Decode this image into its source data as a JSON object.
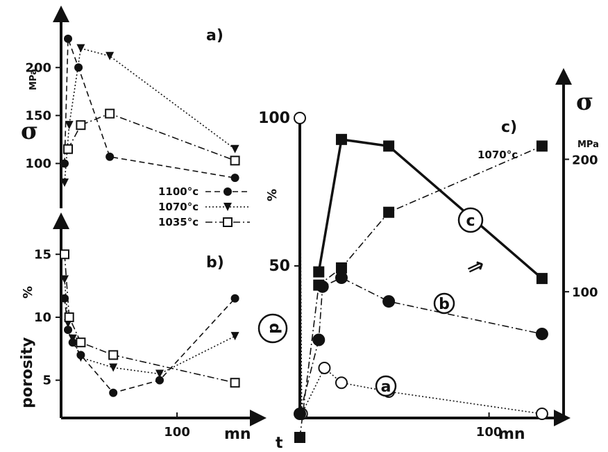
{
  "chart_data": [
    {
      "id": "a",
      "type": "line",
      "panel_label": "a)",
      "ylabel": "σ",
      "yunit": "MPa",
      "yticks": [
        100,
        150,
        200
      ],
      "ylim": [
        75,
        240
      ],
      "xlim": [
        0,
        170
      ],
      "series": [
        {
          "name": "1100°c",
          "marker": "circle-filled",
          "dash": "dashed",
          "x": [
            3,
            6,
            15,
            42,
            150
          ],
          "y": [
            100,
            230,
            200,
            107,
            85
          ]
        },
        {
          "name": "1070°c",
          "marker": "triangle-filled",
          "dash": "dotted",
          "x": [
            3,
            7,
            17,
            42,
            150
          ],
          "y": [
            80,
            140,
            220,
            212,
            115
          ]
        },
        {
          "name": "1035°c",
          "marker": "square-open",
          "dash": "dashdot",
          "x": [
            6,
            17,
            42,
            150
          ],
          "y": [
            115,
            140,
            152,
            103
          ]
        }
      ],
      "legend_position": "lower-right"
    },
    {
      "id": "b",
      "type": "line",
      "panel_label": "b)",
      "ylabel": "porosity",
      "yunit": "%",
      "xunit": "mn",
      "yticks": [
        5,
        10,
        15
      ],
      "xticks": [
        100
      ],
      "ylim": [
        2,
        17
      ],
      "xlim": [
        0,
        170
      ],
      "series": [
        {
          "name": "1100°c",
          "marker": "circle-filled",
          "dash": "dashed",
          "x": [
            3,
            6,
            10,
            17,
            45,
            85,
            150
          ],
          "y": [
            11.5,
            9,
            8,
            7,
            4,
            5,
            11.5
          ]
        },
        {
          "name": "1070°c",
          "marker": "triangle-filled",
          "dash": "dotted",
          "x": [
            3,
            6,
            10,
            17,
            45,
            85,
            150
          ],
          "y": [
            13,
            9.5,
            8.3,
            6.8,
            6,
            5.5,
            8.5
          ]
        },
        {
          "name": "1035°c",
          "marker": "square-open",
          "dash": "dashdot",
          "x": [
            3,
            7,
            17,
            45,
            150
          ],
          "y": [
            15,
            10,
            8,
            7,
            4.8
          ]
        }
      ]
    },
    {
      "id": "c",
      "type": "line",
      "panel_label": "c)",
      "subtitle": "1070°c",
      "ylabel_left": "%",
      "ylabel_right": "σ",
      "yunit_right": "MPa",
      "xlabel": "t",
      "xunit": "mn",
      "yticks_left": [
        50,
        100
      ],
      "yticks_right": [
        100,
        200
      ],
      "xticks": [
        100
      ],
      "ylim_left": [
        0,
        100
      ],
      "ylim_right": [
        -10,
        260
      ],
      "xlim": [
        0,
        135
      ],
      "series": [
        {
          "name": "a",
          "axis": "left",
          "marker": "circle-open",
          "dash": "dotted",
          "x": [
            0,
            1,
            13,
            22,
            47,
            128
          ],
          "y": [
            100,
            0,
            15.5,
            10.5,
            7.5,
            0
          ]
        },
        {
          "name": "b",
          "axis": "left",
          "marker": "circle-filled",
          "dash": "dashdot",
          "x": [
            0,
            10,
            12,
            22,
            47,
            128
          ],
          "y": [
            0,
            25,
            43,
            46,
            38,
            27
          ]
        },
        {
          "name": "c",
          "axis": "right",
          "marker": "square-filled",
          "dash": "dashdot",
          "x": [
            0,
            10,
            22,
            47,
            128
          ],
          "y": [
            -10,
            105,
            118,
            160,
            210
          ]
        },
        {
          "name": "σ",
          "axis": "right",
          "marker": "square-filled",
          "dash": "solid",
          "x": [
            10,
            22,
            47,
            128
          ],
          "y": [
            115,
            215,
            210,
            110
          ]
        }
      ],
      "annotations": [
        "a",
        "b",
        "c",
        "p",
        "⇒"
      ]
    }
  ]
}
